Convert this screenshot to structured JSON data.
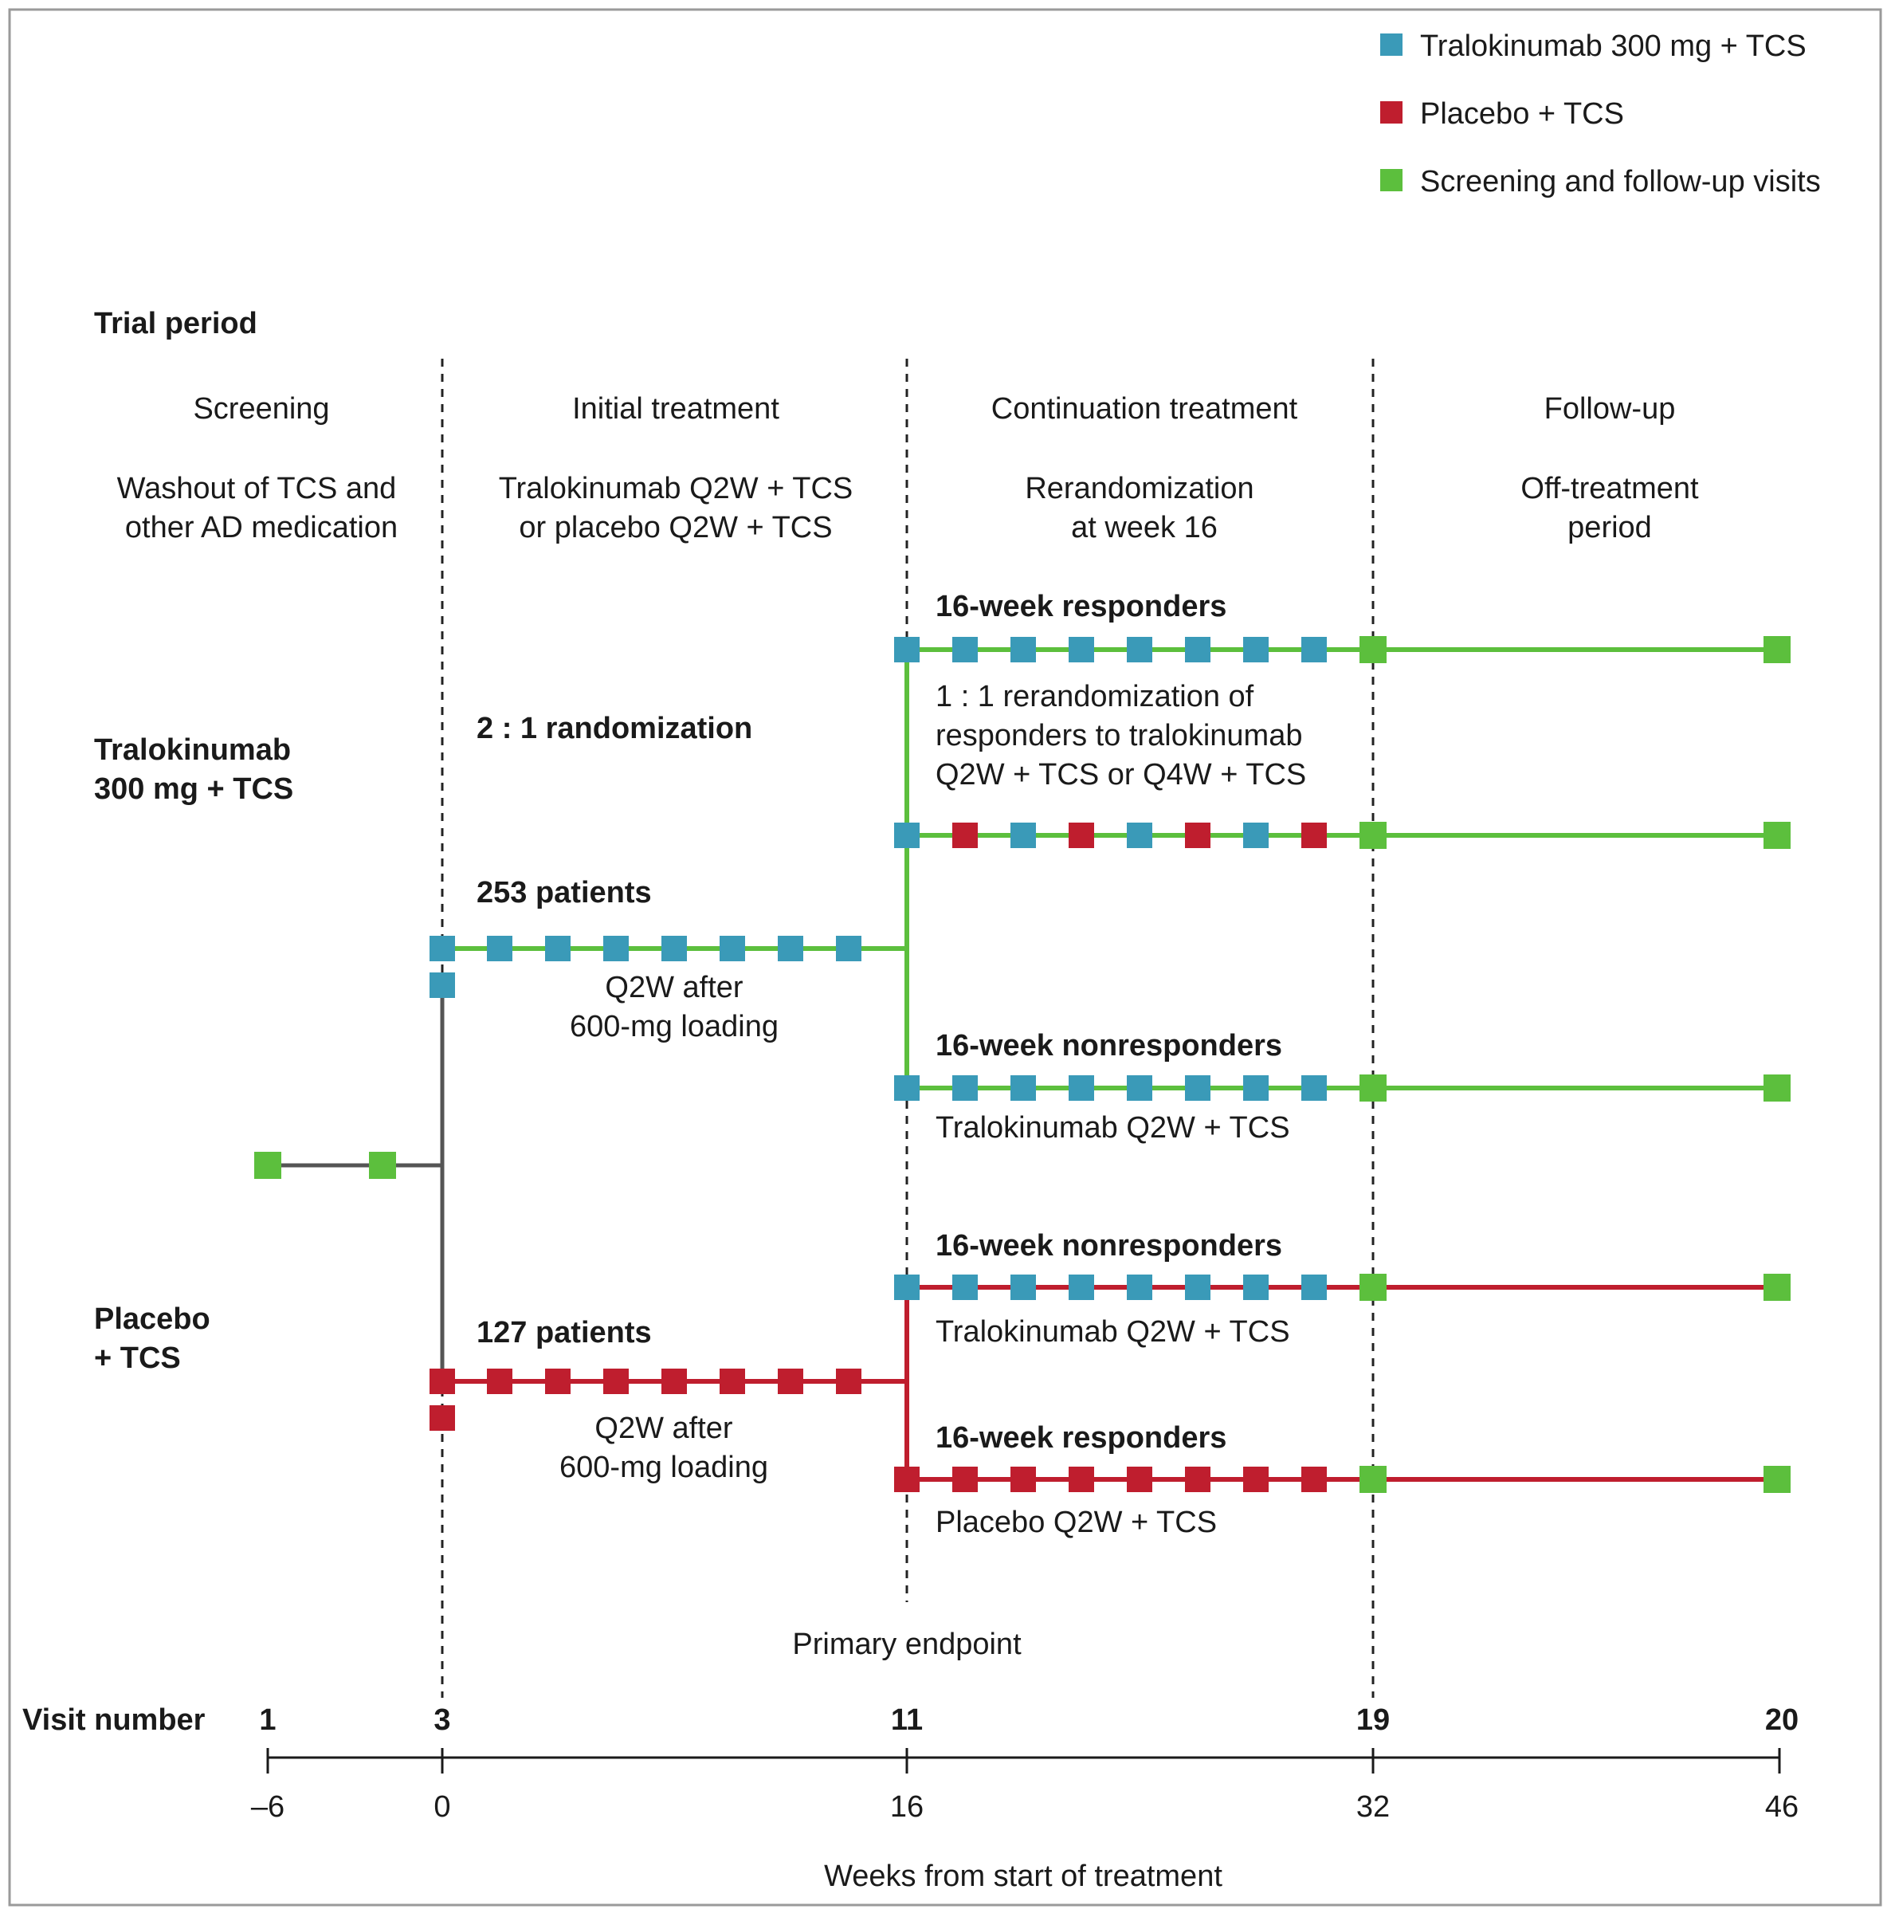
{
  "colors": {
    "tralokinumab": "#3a9ab8",
    "placebo": "#bf1e2e",
    "screening": "#5cbf3d"
  },
  "legend": [
    {
      "label": "Tralokinumab 300 mg + TCS",
      "color": "#3a9ab8"
    },
    {
      "label": "Placebo + TCS",
      "color": "#bf1e2e"
    },
    {
      "label": "Screening and follow-up visits",
      "color": "#5cbf3d"
    }
  ],
  "trial_period_label": "Trial period",
  "periods": [
    {
      "name": "Screening",
      "desc1": "Washout of TCS and",
      "desc2": "other AD medication"
    },
    {
      "name": "Initial treatment",
      "desc1": "Tralokinumab Q2W + TCS",
      "desc2": "or placebo Q2W + TCS"
    },
    {
      "name": "Continuation treatment",
      "desc1": "Rerandomization",
      "desc2": "at week 16"
    },
    {
      "name": "Follow-up",
      "desc1": "Off-treatment",
      "desc2": "period"
    }
  ],
  "arms": {
    "tralokinumab_line1": "Tralokinumab",
    "tralokinumab_line2": "300 mg + TCS",
    "placebo_line1": "Placebo",
    "placebo_line2": "+ TCS"
  },
  "labels": {
    "randomization": "2 : 1 randomization",
    "tral_patients": "253 patients",
    "tral_dosing1": "Q2W after",
    "tral_dosing2": "600-mg loading",
    "pbo_patients": "127 patients",
    "pbo_dosing1": "Q2W after",
    "pbo_dosing2": "600-mg loading",
    "responders_top": "16-week responders",
    "rerand1": "1 : 1 rerandomization of",
    "rerand2": "responders to tralokinumab",
    "rerand3": "Q2W + TCS or Q4W + TCS",
    "nonresp_tral": "16-week nonresponders",
    "nonresp_tral_tx": "Tralokinumab Q2W + TCS",
    "nonresp_pbo": "16-week nonresponders",
    "nonresp_pbo_tx": "Tralokinumab Q2W + TCS",
    "resp_pbo": "16-week responders",
    "resp_pbo_tx": "Placebo Q2W + TCS",
    "primary_endpoint": "Primary endpoint"
  },
  "visit_label": "Visit number",
  "visits": [
    "1",
    "3",
    "11",
    "19",
    "20"
  ],
  "week_ticks": [
    "–6",
    "0",
    "16",
    "32",
    "46"
  ],
  "axis_title": "Weeks from start of treatment"
}
